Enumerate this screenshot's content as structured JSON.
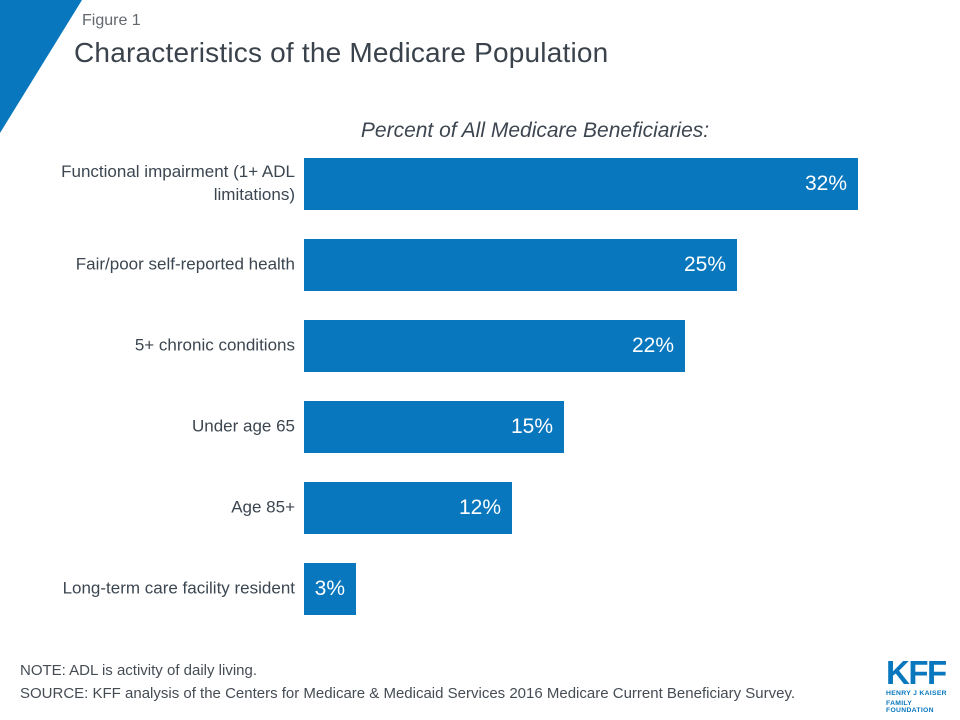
{
  "accent_blue": "#0877bd",
  "header": {
    "figure_label": "Figure 1",
    "title": "Characteristics of the Medicare Population"
  },
  "chart_data": {
    "type": "bar",
    "orientation": "horizontal",
    "title": "Percent of All Medicare Beneficiaries:",
    "categories": [
      "Functional impairment (1+ ADL limitations)",
      "Fair/poor self-reported health",
      "5+ chronic conditions",
      "Under age 65",
      "Age 85+",
      "Long-term care facility resident"
    ],
    "values": [
      32,
      25,
      22,
      15,
      12,
      3
    ],
    "value_labels": [
      "32%",
      "25%",
      "22%",
      "15%",
      "12%",
      "3%"
    ],
    "xlim": [
      0,
      32
    ],
    "bar_color": "#0877bd",
    "value_label_color": "#ffffff",
    "grid": false,
    "legend": false
  },
  "footer": {
    "note": "NOTE: ADL is activity of daily living.",
    "source": "SOURCE: KFF analysis of the Centers for Medicare & Medicaid Services 2016 Medicare Current Beneficiary Survey.",
    "logo": {
      "acronym": "KFF",
      "line1": "HENRY J KAISER",
      "line2": "FAMILY FOUNDATION"
    }
  }
}
